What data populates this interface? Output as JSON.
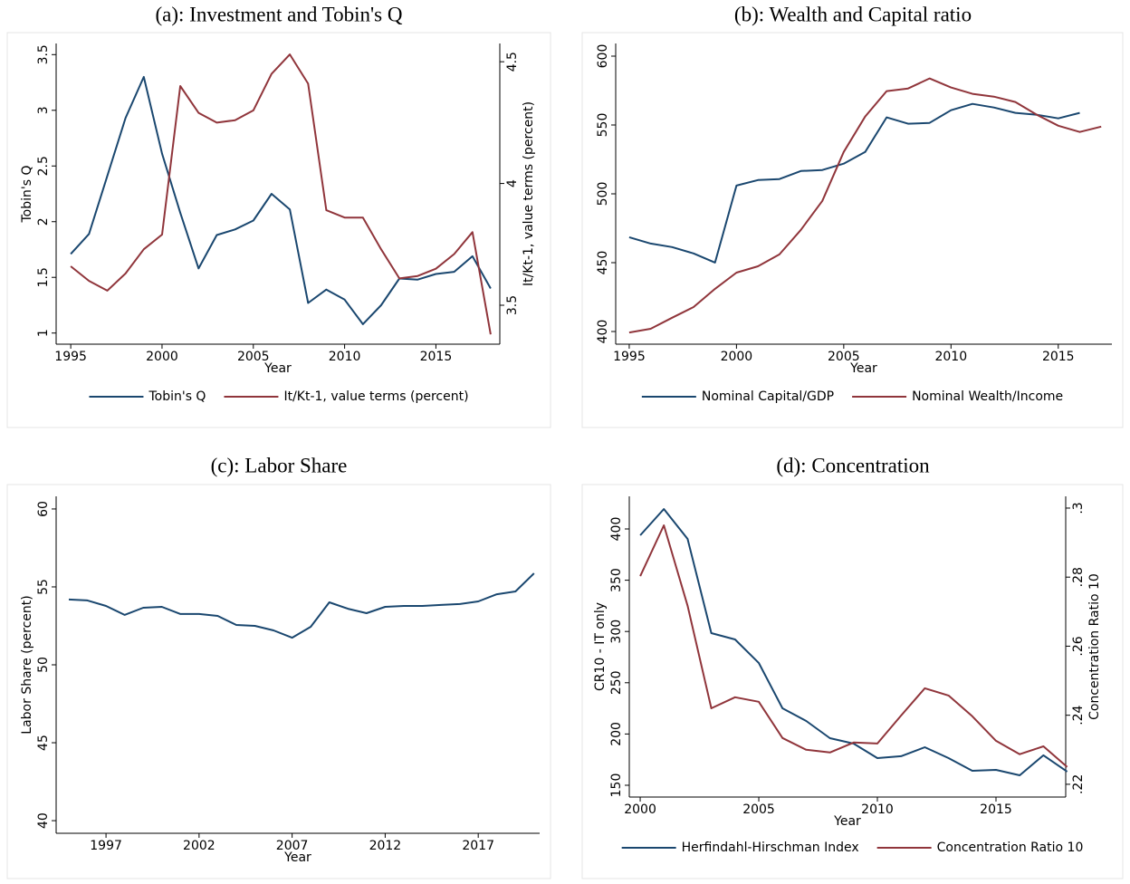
{
  "chart_data": [
    {
      "type": "line",
      "title": "(a): Investment and Tobin's Q",
      "xlabel": "Year",
      "ylabel": "Tobin's Q",
      "y2label": "It/Kt-1, value terms (percent)",
      "x": [
        1995,
        1996,
        1997,
        1998,
        1999,
        2000,
        2001,
        2002,
        2003,
        2004,
        2005,
        2006,
        2007,
        2008,
        2009,
        2010,
        2011,
        2012,
        2013,
        2014,
        2015,
        2016,
        2017,
        2018
      ],
      "xlim": [
        1994.2,
        2018.5
      ],
      "xticks": [
        1995,
        2000,
        2005,
        2010,
        2015
      ],
      "ylim": [
        0.9,
        3.6
      ],
      "yticks": [
        1,
        1.5,
        2,
        2.5,
        3,
        3.5
      ],
      "y2lim": [
        3.34,
        4.575
      ],
      "y2ticks": [
        3.5,
        4,
        4.5
      ],
      "series": [
        {
          "name": "Tobin's Q",
          "color": "#1a476f",
          "values": [
            1.71,
            1.89,
            2.41,
            2.93,
            3.3,
            2.61,
            2.08,
            1.58,
            1.88,
            1.93,
            2.01,
            2.25,
            2.11,
            1.27,
            1.39,
            1.3,
            1.08,
            1.25,
            1.49,
            1.48,
            1.53,
            1.55,
            1.69,
            1.4
          ]
        },
        {
          "name": "It/Kt-1, value terms (percent)",
          "color": "#90353b",
          "axis": "y2",
          "values": [
            3.66,
            3.6,
            3.56,
            3.63,
            3.73,
            3.79,
            4.4,
            4.29,
            4.25,
            4.26,
            4.3,
            4.45,
            4.53,
            4.41,
            3.89,
            3.86,
            3.86,
            3.73,
            3.61,
            3.62,
            3.65,
            3.71,
            3.8,
            3.38
          ]
        }
      ]
    },
    {
      "type": "line",
      "title": "(b): Wealth and Capital ratio",
      "xlabel": "Year",
      "x": [
        1995,
        1996,
        1997,
        1998,
        1999,
        2000,
        2001,
        2002,
        2003,
        2004,
        2005,
        2006,
        2007,
        2008,
        2009,
        2010,
        2011,
        2012,
        2013,
        2014,
        2015,
        2016,
        2017
      ],
      "xlim": [
        1994.37,
        2017.5
      ],
      "xticks": [
        1995,
        2000,
        2005,
        2010,
        2015
      ],
      "ylim": [
        390.8,
        609.2
      ],
      "yticks": [
        400,
        450,
        500,
        550,
        600
      ],
      "series": [
        {
          "name": "Nominal Capital/GDP",
          "color": "#1a476f",
          "values": [
            468.5,
            463.9,
            461.3,
            456.7,
            450.1,
            506,
            510,
            510.7,
            516.6,
            517.3,
            521.9,
            530.4,
            555.5,
            550.9,
            551.5,
            560.7,
            565.3,
            562.7,
            558.8,
            557.4,
            554.8,
            558.8,
            null
          ]
        },
        {
          "name": "Nominal Wealth/Income",
          "color": "#90353b",
          "values": [
            399.3,
            402,
            410,
            417.8,
            431,
            442.8,
            447.4,
            456,
            473.8,
            494.9,
            530.4,
            556.1,
            574.6,
            576.5,
            583.8,
            577.2,
            572.6,
            570.6,
            566.7,
            557.4,
            549.5,
            544.9,
            548.8
          ]
        }
      ]
    },
    {
      "type": "line",
      "title": "(c): Labor Share",
      "xlabel": "Year",
      "ylabel": "Labor Share (percent)",
      "x": [
        1995,
        1996,
        1997,
        1998,
        1999,
        2000,
        2001,
        2002,
        2003,
        2004,
        2005,
        2006,
        2007,
        2008,
        2009,
        2010,
        2011,
        2012,
        2013,
        2014,
        2015,
        2016,
        2017,
        2018,
        2019,
        2020
      ],
      "xlim": [
        1994.32,
        2020.3
      ],
      "xticks": [
        1997,
        2002,
        2007,
        2012,
        2017
      ],
      "ylim": [
        39.19,
        60.81
      ],
      "yticks": [
        40,
        45,
        50,
        55,
        60
      ],
      "series": [
        {
          "color": "#1a476f",
          "values": [
            54.19,
            54.13,
            53.78,
            53.2,
            53.66,
            53.72,
            53.26,
            53.26,
            53.14,
            52.56,
            52.5,
            52.21,
            51.74,
            52.44,
            54.01,
            53.6,
            53.31,
            53.72,
            53.78,
            53.78,
            53.84,
            53.9,
            54.07,
            54.53,
            54.71,
            55.87
          ]
        }
      ]
    },
    {
      "type": "line",
      "title": "(d): Concentration",
      "xlabel": "Year",
      "ylabel": "CR10 - IT only",
      "y2label": "Concentration Ratio 10",
      "x": [
        2000,
        2001,
        2002,
        2003,
        2004,
        2005,
        2006,
        2007,
        2008,
        2009,
        2010,
        2011,
        2012,
        2013,
        2014,
        2015,
        2016,
        2017,
        2018
      ],
      "xlim": [
        1999.54,
        2017.94
      ],
      "xticks": [
        2000,
        2005,
        2010,
        2015
      ],
      "ylim": [
        138.5,
        431.8
      ],
      "yticks": [
        150,
        200,
        250,
        300,
        350,
        400
      ],
      "y2lim": [
        0.2163,
        0.3034
      ],
      "y2ticks": [
        {
          "value": 0.22,
          "label": ".22"
        },
        {
          "value": 0.24,
          "label": ".24"
        },
        {
          "value": 0.26,
          "label": ".26"
        },
        {
          "value": 0.28,
          "label": ".28"
        },
        {
          "value": 0.3,
          "label": ".3"
        }
      ],
      "series": [
        {
          "name": "Herfindahl-Hirschman Index",
          "color": "#1a476f",
          "values": [
            393.8,
            419.4,
            390.3,
            298.4,
            292.2,
            269.3,
            225.1,
            212.7,
            195.9,
            190.6,
            176.5,
            178.3,
            187.1,
            176.5,
            164.1,
            165,
            159.7,
            179.2,
            163.3
          ]
        },
        {
          "name": "Concentration Ratio 10",
          "color": "#90353b",
          "axis": "y2",
          "values": [
            0.2803,
            0.295,
            0.2717,
            0.242,
            0.2452,
            0.2439,
            0.2334,
            0.23,
            0.2292,
            0.2321,
            0.2318,
            0.2399,
            0.2478,
            0.2457,
            0.2397,
            0.2326,
            0.2287,
            0.231,
            0.225
          ]
        }
      ]
    }
  ]
}
